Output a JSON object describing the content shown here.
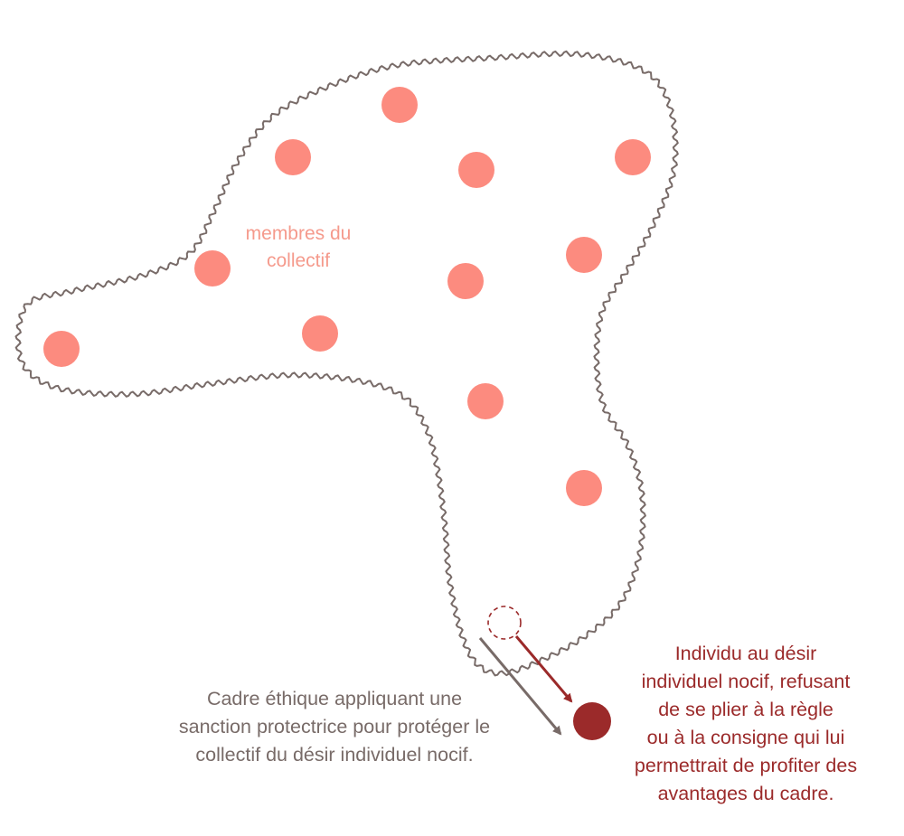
{
  "colors": {
    "member": "#fc8b7f",
    "boundary": "#786b68",
    "individual": "#9b2a2a",
    "members_text": "#f59a8c",
    "frame_text": "#786b68",
    "individual_text": "#9b2a2a"
  },
  "labels": {
    "members": [
      "membres du",
      "collectif"
    ],
    "frame": [
      "Cadre éthique appliquant une",
      "sanction protectrice pour protéger le",
      "collectif du désir individuel nocif."
    ],
    "individual": [
      "Individu au désir",
      "individuel nocif, refusant",
      "de se plier à la règle",
      "ou à la consigne qui lui",
      "permettrait de profiter des",
      "avantages du cadre."
    ]
  },
  "counts": {
    "members": 12
  }
}
